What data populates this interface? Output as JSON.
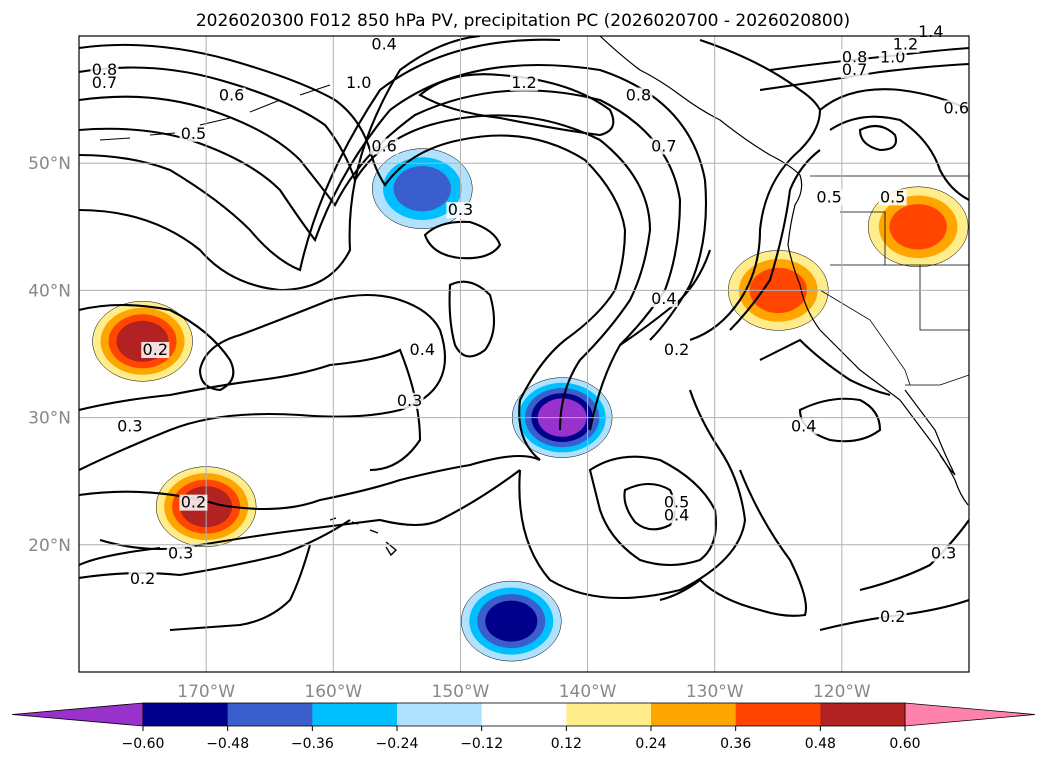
{
  "chart_data": {
    "type": "contour_map",
    "title": "2026020300 F012 850 hPa PV, precipitation PC (2026020700 - 2026020800)",
    "map_extent": {
      "lon": [
        -180,
        -110
      ],
      "lat": [
        10,
        60
      ]
    },
    "grid": true,
    "lon_ticks": [
      {
        "value": -170,
        "label": "170°W"
      },
      {
        "value": -160,
        "label": "160°W"
      },
      {
        "value": -150,
        "label": "150°W"
      },
      {
        "value": -140,
        "label": "140°W"
      },
      {
        "value": -130,
        "label": "130°W"
      },
      {
        "value": -120,
        "label": "120°W"
      }
    ],
    "lat_ticks": [
      {
        "value": 20,
        "label": "20°N"
      },
      {
        "value": 30,
        "label": "30°N"
      },
      {
        "value": 40,
        "label": "40°N"
      },
      {
        "value": 50,
        "label": "50°N"
      }
    ],
    "colorbar": {
      "position": "bottom",
      "extend": "both",
      "bounds": [
        -0.6,
        -0.48,
        -0.36,
        -0.24,
        -0.12,
        0.12,
        0.24,
        0.36,
        0.48,
        0.6
      ],
      "colors": [
        "#9932cc",
        "#00008b",
        "#3a5fcd",
        "#00bfff",
        "#b0e2ff",
        "#ffffff",
        "#ffec8b",
        "#ffa500",
        "#ff4500",
        "#b22222",
        "#ff82ab"
      ],
      "tick_labels": [
        "−0.60",
        "−0.48",
        "−0.36",
        "−0.24",
        "−0.12",
        "0.12",
        "0.24",
        "0.36",
        "0.48",
        "0.60"
      ]
    },
    "contour_labels": [
      {
        "text": "0.8",
        "lon": -178,
        "lat": 57
      },
      {
        "text": "0.7",
        "lon": -178,
        "lat": 56
      },
      {
        "text": "0.6",
        "lon": -168,
        "lat": 55
      },
      {
        "text": "0.5",
        "lon": -171,
        "lat": 52
      },
      {
        "text": "0.4",
        "lon": -156,
        "lat": 59
      },
      {
        "text": "1.0",
        "lon": -158,
        "lat": 56
      },
      {
        "text": "1.2",
        "lon": -145,
        "lat": 56
      },
      {
        "text": "0.6",
        "lon": -156,
        "lat": 51
      },
      {
        "text": "0.3",
        "lon": -150,
        "lat": 46
      },
      {
        "text": "0.8",
        "lon": -136,
        "lat": 55
      },
      {
        "text": "0.7",
        "lon": -134,
        "lat": 51
      },
      {
        "text": "0.8",
        "lon": -119,
        "lat": 58
      },
      {
        "text": "0.7",
        "lon": -119,
        "lat": 57
      },
      {
        "text": "1.0",
        "lon": -116,
        "lat": 58
      },
      {
        "text": "1.2",
        "lon": -115,
        "lat": 59
      },
      {
        "text": "1.4",
        "lon": -113,
        "lat": 60
      },
      {
        "text": "0.6",
        "lon": -111,
        "lat": 54
      },
      {
        "text": "0.5",
        "lon": -116,
        "lat": 47
      },
      {
        "text": "0.5",
        "lon": -121,
        "lat": 47
      },
      {
        "text": "0.4",
        "lon": -134,
        "lat": 39
      },
      {
        "text": "0.2",
        "lon": -133,
        "lat": 35
      },
      {
        "text": "0.4",
        "lon": -153,
        "lat": 35
      },
      {
        "text": "0.3",
        "lon": -154,
        "lat": 31
      },
      {
        "text": "0.2",
        "lon": -174,
        "lat": 35
      },
      {
        "text": "0.3",
        "lon": -176,
        "lat": 29
      },
      {
        "text": "0.2",
        "lon": -171,
        "lat": 23
      },
      {
        "text": "0.3",
        "lon": -172,
        "lat": 19
      },
      {
        "text": "0.2",
        "lon": -175,
        "lat": 17
      },
      {
        "text": "0.5",
        "lon": -133,
        "lat": 23
      },
      {
        "text": "0.4",
        "lon": -133,
        "lat": 22
      },
      {
        "text": "0.4",
        "lon": -123,
        "lat": 29
      },
      {
        "text": "0.3",
        "lon": -112,
        "lat": 19
      },
      {
        "text": "0.2",
        "lon": -116,
        "lat": 14
      }
    ],
    "shaded_regions": [
      {
        "name": "north-central negative anomaly",
        "value": -0.36,
        "center": [
          -153,
          48
        ]
      },
      {
        "name": "central negative anomaly",
        "value": -0.6,
        "center": [
          -142,
          30
        ]
      },
      {
        "name": "southern negative anomaly",
        "value": -0.48,
        "center": [
          -146,
          14
        ]
      },
      {
        "name": "western positive anomaly",
        "value": 0.48,
        "center": [
          -175,
          36
        ]
      },
      {
        "name": "southwestern positive anomaly",
        "value": 0.48,
        "center": [
          -170,
          23
        ]
      },
      {
        "name": "coastal positive anomaly",
        "value": 0.36,
        "center": [
          -125,
          40
        ]
      },
      {
        "name": "interior positive anomaly",
        "value": 0.36,
        "center": [
          -114,
          45
        ]
      }
    ]
  }
}
